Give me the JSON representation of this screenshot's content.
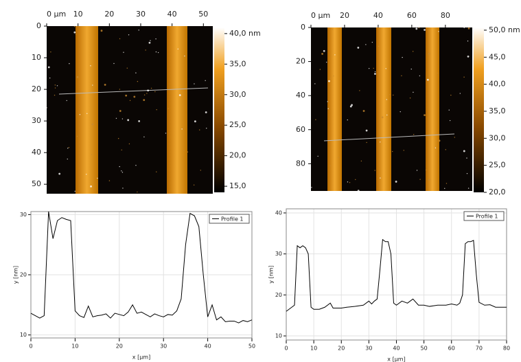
{
  "chart_data": [
    {
      "type": "image",
      "xlim": [
        0,
        53
      ],
      "ylim": [
        0,
        53
      ],
      "xticks": [
        {
          "value": 0,
          "label": "0 µm"
        },
        10,
        20,
        30,
        40,
        50
      ],
      "yticks": [
        0,
        10,
        20,
        30,
        40,
        50
      ],
      "clim": [
        14,
        41
      ],
      "cticks": [
        {
          "value": 40,
          "label": "40,0 nm"
        },
        {
          "value": 35,
          "label": "35,0"
        },
        {
          "value": 30,
          "label": "30,0"
        },
        {
          "value": 25,
          "label": "25,0"
        },
        {
          "value": 20,
          "label": "20,0"
        },
        {
          "value": 15,
          "label": "15,0"
        }
      ]
    },
    {
      "type": "image",
      "xlim": [
        0,
        96
      ],
      "ylim": [
        0,
        96
      ],
      "xticks": [
        {
          "value": 0,
          "label": "0 µm"
        },
        20,
        40,
        60,
        80
      ],
      "yticks": [
        0,
        20,
        40,
        60,
        80
      ],
      "clim": [
        20,
        50.5
      ],
      "cticks": [
        {
          "value": 50,
          "label": "50,0 nm"
        },
        {
          "value": 45,
          "label": "45,0"
        },
        {
          "value": 40,
          "label": "40,0"
        },
        {
          "value": 35,
          "label": "35,0"
        },
        {
          "value": 30,
          "label": "30,0"
        },
        {
          "value": 25,
          "label": "25,0"
        },
        {
          "value": 20,
          "label": "20,0"
        }
      ]
    },
    {
      "type": "line",
      "x_label": "x [µm]",
      "y_label": "y [nm]",
      "grid": true,
      "legend": "upper right",
      "xlim": [
        0,
        50
      ],
      "ylim": [
        9.5,
        30.5
      ],
      "xticks": [
        0,
        10,
        20,
        30,
        40,
        50
      ],
      "yticks": [
        10,
        20,
        30
      ],
      "x": [
        0,
        1,
        2,
        3,
        4,
        5,
        6,
        7,
        8,
        9,
        10,
        11,
        12,
        13,
        14,
        15,
        16,
        17,
        18,
        19,
        20,
        21,
        22,
        23,
        24,
        25,
        26,
        27,
        28,
        29,
        30,
        31,
        32,
        33,
        34,
        35,
        36,
        37,
        38,
        39,
        40,
        41,
        42,
        43,
        44,
        45,
        46,
        47,
        48,
        49,
        50
      ],
      "series": [
        {
          "name": "Profile 1",
          "color": "#000000",
          "values": [
            13.6,
            13.2,
            12.8,
            13.2,
            30.5,
            26,
            29,
            29.5,
            29.2,
            29,
            14,
            13.2,
            12.9,
            14.8,
            13,
            13.2,
            13.3,
            13.5,
            12.8,
            13.6,
            13.4,
            13.2,
            13.8,
            15,
            13.6,
            13.8,
            13.4,
            13,
            13.5,
            13.2,
            13,
            13.4,
            13.3,
            14,
            16,
            25,
            30.2,
            29.8,
            28,
            20,
            13,
            15,
            12.5,
            13,
            12.2,
            12.3,
            12.3,
            12,
            12.4,
            12.2,
            12.5
          ]
        }
      ]
    },
    {
      "type": "line",
      "x_label": "x [µm]",
      "y_label": "y [nm]",
      "grid": true,
      "legend": "upper right",
      "xlim": [
        0,
        80
      ],
      "ylim": [
        9,
        41
      ],
      "xticks": [
        0,
        10,
        20,
        30,
        40,
        50,
        60,
        70,
        80
      ],
      "yticks": [
        10,
        20,
        30,
        40
      ],
      "x": [
        0,
        2,
        3,
        4,
        5,
        6,
        7,
        8,
        9,
        10,
        12,
        14,
        16,
        17,
        20,
        22,
        25,
        28,
        30,
        31,
        32,
        33,
        34,
        35,
        36,
        37,
        38,
        39,
        40,
        42,
        44,
        46,
        48,
        50,
        52,
        55,
        58,
        60,
        62,
        63,
        64,
        65,
        66,
        67,
        68,
        69,
        70,
        72,
        74,
        76,
        78,
        80
      ],
      "series": [
        {
          "name": "Profile 1",
          "color": "#000000",
          "values": [
            16,
            17,
            17.5,
            32,
            31.5,
            32,
            31.5,
            30,
            17,
            16.5,
            16.5,
            17,
            18,
            16.8,
            16.8,
            17,
            17.2,
            17.5,
            18.5,
            17.8,
            18.5,
            19,
            26,
            33.5,
            33,
            33,
            30,
            18,
            17.5,
            18.5,
            18,
            19,
            17.5,
            17.5,
            17.2,
            17.5,
            17.5,
            17.8,
            17.5,
            18,
            20,
            32.5,
            33,
            33,
            33.3,
            25,
            18.2,
            17.5,
            17.6,
            17,
            17,
            17
          ]
        }
      ]
    }
  ]
}
